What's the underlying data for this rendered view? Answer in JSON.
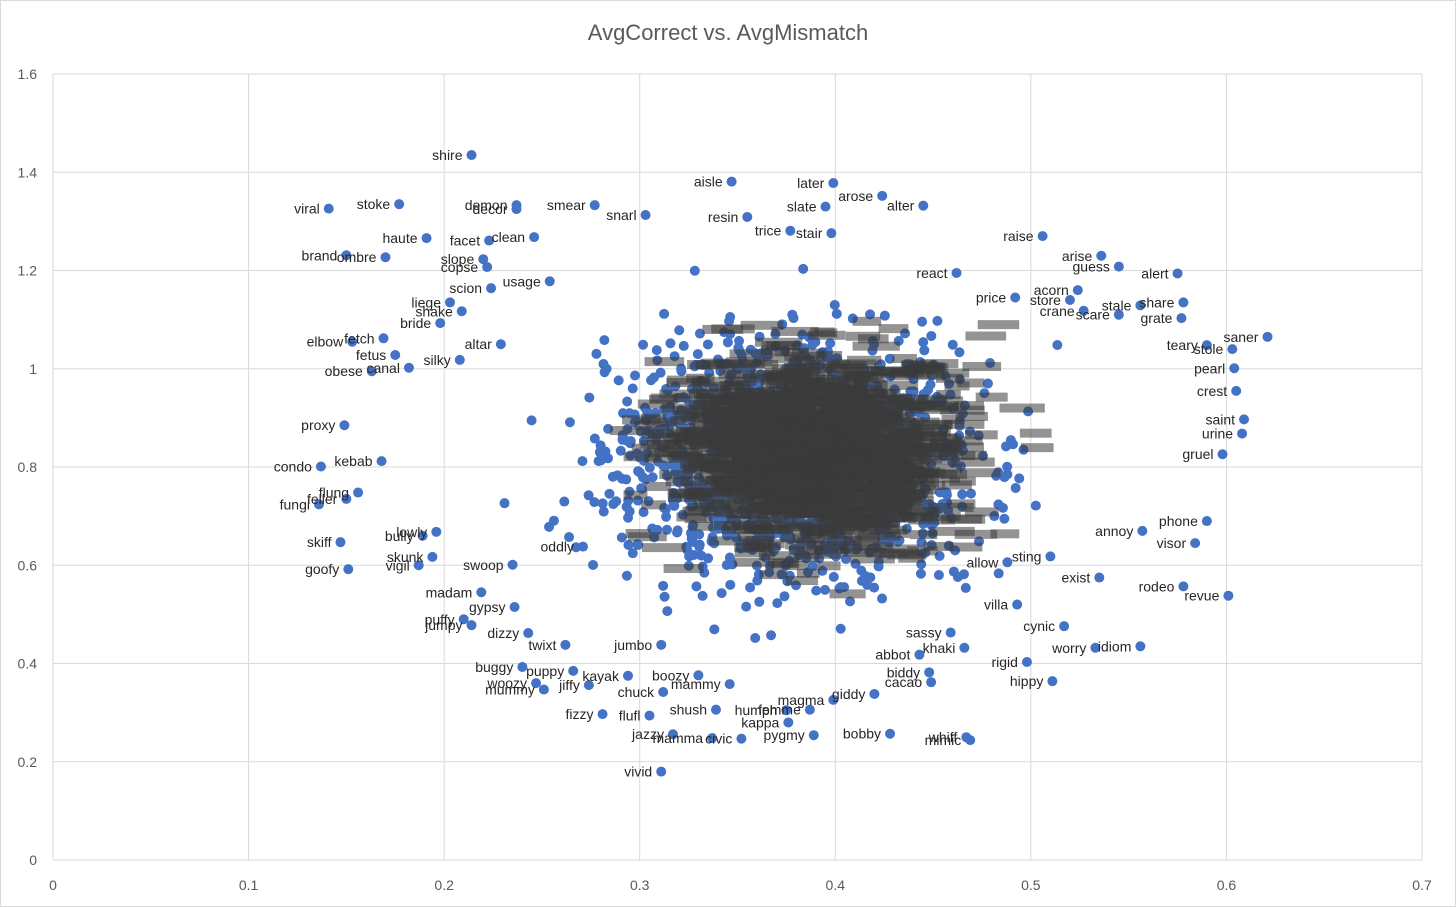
{
  "chart_data": {
    "type": "scatter",
    "title": "AvgCorrect vs. AvgMismatch",
    "xlabel": "",
    "ylabel": "",
    "xlim": [
      0,
      0.7
    ],
    "ylim": [
      0,
      1.6
    ],
    "x_ticks": [
      "0",
      "0.1",
      "0.2",
      "0.3",
      "0.4",
      "0.5",
      "0.6",
      "0.7"
    ],
    "y_ticks": [
      "0",
      "0.2",
      "0.4",
      "0.6",
      "0.8",
      "1",
      "1.2",
      "1.4",
      "1.6"
    ],
    "grid": true,
    "marker_color": "#4472c4",
    "label_color": "#262626",
    "points": [
      {
        "label": "shire",
        "x": 0.214,
        "y": 1.435
      },
      {
        "label": "aisle",
        "x": 0.347,
        "y": 1.381
      },
      {
        "label": "later",
        "x": 0.399,
        "y": 1.378
      },
      {
        "label": "arose",
        "x": 0.424,
        "y": 1.352
      },
      {
        "label": "alter",
        "x": 0.445,
        "y": 1.332
      },
      {
        "label": "slate",
        "x": 0.395,
        "y": 1.33
      },
      {
        "label": "viral",
        "x": 0.141,
        "y": 1.326
      },
      {
        "label": "stoke",
        "x": 0.177,
        "y": 1.335
      },
      {
        "label": "demon",
        "x": 0.237,
        "y": 1.333
      },
      {
        "label": "decor",
        "x": 0.237,
        "y": 1.325
      },
      {
        "label": "smear",
        "x": 0.277,
        "y": 1.333
      },
      {
        "label": "snarl",
        "x": 0.303,
        "y": 1.313
      },
      {
        "label": "resin",
        "x": 0.355,
        "y": 1.309
      },
      {
        "label": "trice",
        "x": 0.377,
        "y": 1.281
      },
      {
        "label": "stair",
        "x": 0.398,
        "y": 1.276
      },
      {
        "label": "haute",
        "x": 0.191,
        "y": 1.266
      },
      {
        "label": "facet",
        "x": 0.223,
        "y": 1.261
      },
      {
        "label": "clean",
        "x": 0.246,
        "y": 1.268
      },
      {
        "label": "raise",
        "x": 0.506,
        "y": 1.27
      },
      {
        "label": "brand",
        "x": 0.15,
        "y": 1.231
      },
      {
        "label": "ombre",
        "x": 0.17,
        "y": 1.227
      },
      {
        "label": "slope",
        "x": 0.22,
        "y": 1.223
      },
      {
        "label": "copse",
        "x": 0.222,
        "y": 1.207
      },
      {
        "label": "arise",
        "x": 0.536,
        "y": 1.23
      },
      {
        "label": "guess",
        "x": 0.545,
        "y": 1.208
      },
      {
        "label": "react",
        "x": 0.462,
        "y": 1.195
      },
      {
        "label": "alert",
        "x": 0.575,
        "y": 1.194
      },
      {
        "label": "usage",
        "x": 0.254,
        "y": 1.178
      },
      {
        "label": "scion",
        "x": 0.224,
        "y": 1.164
      },
      {
        "label": "acorn",
        "x": 0.524,
        "y": 1.16
      },
      {
        "label": "price",
        "x": 0.492,
        "y": 1.145
      },
      {
        "label": "store",
        "x": 0.52,
        "y": 1.14
      },
      {
        "label": "crane",
        "x": 0.527,
        "y": 1.118
      },
      {
        "label": "share",
        "x": 0.578,
        "y": 1.135
      },
      {
        "label": "stale",
        "x": 0.556,
        "y": 1.129
      },
      {
        "label": "liege",
        "x": 0.203,
        "y": 1.135
      },
      {
        "label": "shake",
        "x": 0.209,
        "y": 1.117
      },
      {
        "label": "bride",
        "x": 0.198,
        "y": 1.093
      },
      {
        "label": "scare",
        "x": 0.545,
        "y": 1.11
      },
      {
        "label": "grate",
        "x": 0.577,
        "y": 1.103
      },
      {
        "label": "elbow",
        "x": 0.153,
        "y": 1.055
      },
      {
        "label": "fetch",
        "x": 0.169,
        "y": 1.062
      },
      {
        "label": "fetus",
        "x": 0.175,
        "y": 1.028
      },
      {
        "label": "canal",
        "x": 0.182,
        "y": 1.002
      },
      {
        "label": "obese",
        "x": 0.163,
        "y": 0.995
      },
      {
        "label": "silky",
        "x": 0.208,
        "y": 1.018
      },
      {
        "label": "altar",
        "x": 0.229,
        "y": 1.05
      },
      {
        "label": "saner",
        "x": 0.621,
        "y": 1.065
      },
      {
        "label": "teary",
        "x": 0.59,
        "y": 1.048
      },
      {
        "label": "stole",
        "x": 0.603,
        "y": 1.04
      },
      {
        "label": "pearl",
        "x": 0.604,
        "y": 1.001
      },
      {
        "label": "crest",
        "x": 0.605,
        "y": 0.955
      },
      {
        "label": "saint",
        "x": 0.609,
        "y": 0.897
      },
      {
        "label": "urine",
        "x": 0.608,
        "y": 0.868
      },
      {
        "label": "gruel",
        "x": 0.598,
        "y": 0.826
      },
      {
        "label": "proxy",
        "x": 0.149,
        "y": 0.885
      },
      {
        "label": "condo",
        "x": 0.137,
        "y": 0.801
      },
      {
        "label": "kebab",
        "x": 0.168,
        "y": 0.812
      },
      {
        "label": "flung",
        "x": 0.156,
        "y": 0.748
      },
      {
        "label": "fungi",
        "x": 0.136,
        "y": 0.724
      },
      {
        "label": "feller",
        "x": 0.15,
        "y": 0.735
      },
      {
        "label": "skiff",
        "x": 0.147,
        "y": 0.647
      },
      {
        "label": "goofy",
        "x": 0.151,
        "y": 0.592
      },
      {
        "label": "bully",
        "x": 0.189,
        "y": 0.66
      },
      {
        "label": "lowly",
        "x": 0.196,
        "y": 0.668
      },
      {
        "label": "skunk",
        "x": 0.194,
        "y": 0.617
      },
      {
        "label": "vigil",
        "x": 0.187,
        "y": 0.6
      },
      {
        "label": "swoop",
        "x": 0.235,
        "y": 0.601
      },
      {
        "label": "oddly",
        "x": 0.271,
        "y": 0.638
      },
      {
        "label": "madam",
        "x": 0.219,
        "y": 0.545
      },
      {
        "label": "gypsy",
        "x": 0.236,
        "y": 0.515
      },
      {
        "label": "puffy",
        "x": 0.21,
        "y": 0.49
      },
      {
        "label": "jumpy",
        "x": 0.214,
        "y": 0.478
      },
      {
        "label": "dizzy",
        "x": 0.243,
        "y": 0.462
      },
      {
        "label": "twixt",
        "x": 0.262,
        "y": 0.438
      },
      {
        "label": "jumbo",
        "x": 0.311,
        "y": 0.438
      },
      {
        "label": "buggy",
        "x": 0.24,
        "y": 0.393
      },
      {
        "label": "puppy",
        "x": 0.266,
        "y": 0.385
      },
      {
        "label": "woozy",
        "x": 0.247,
        "y": 0.36
      },
      {
        "label": "mummy",
        "x": 0.251,
        "y": 0.347
      },
      {
        "label": "jiffy",
        "x": 0.274,
        "y": 0.356
      },
      {
        "label": "kayak",
        "x": 0.294,
        "y": 0.375
      },
      {
        "label": "boozy",
        "x": 0.33,
        "y": 0.376
      },
      {
        "label": "chuck",
        "x": 0.312,
        "y": 0.342
      },
      {
        "label": "mammy",
        "x": 0.346,
        "y": 0.358
      },
      {
        "label": "shush",
        "x": 0.339,
        "y": 0.306
      },
      {
        "label": "fizzy",
        "x": 0.281,
        "y": 0.297
      },
      {
        "label": "flufl",
        "x": 0.305,
        "y": 0.294
      },
      {
        "label": "humph",
        "x": 0.375,
        "y": 0.305
      },
      {
        "label": "femme",
        "x": 0.387,
        "y": 0.306
      },
      {
        "label": "kappa",
        "x": 0.376,
        "y": 0.28
      },
      {
        "label": "jazzy",
        "x": 0.317,
        "y": 0.256
      },
      {
        "label": "mamma",
        "x": 0.337,
        "y": 0.248
      },
      {
        "label": "civic",
        "x": 0.352,
        "y": 0.247
      },
      {
        "label": "pygmy",
        "x": 0.389,
        "y": 0.254
      },
      {
        "label": "bobby",
        "x": 0.428,
        "y": 0.257
      },
      {
        "label": "whiff",
        "x": 0.467,
        "y": 0.25
      },
      {
        "label": "mimic",
        "x": 0.469,
        "y": 0.244
      },
      {
        "label": "vivid",
        "x": 0.311,
        "y": 0.18
      },
      {
        "label": "magma",
        "x": 0.399,
        "y": 0.326
      },
      {
        "label": "giddy",
        "x": 0.42,
        "y": 0.338
      },
      {
        "label": "hippy",
        "x": 0.511,
        "y": 0.364
      },
      {
        "label": "rigid",
        "x": 0.498,
        "y": 0.403
      },
      {
        "label": "worry",
        "x": 0.533,
        "y": 0.432
      },
      {
        "label": "idiom",
        "x": 0.556,
        "y": 0.435
      },
      {
        "label": "revue",
        "x": 0.601,
        "y": 0.538
      },
      {
        "label": "rodeo",
        "x": 0.578,
        "y": 0.557
      },
      {
        "label": "visor",
        "x": 0.584,
        "y": 0.645
      },
      {
        "label": "annoy",
        "x": 0.557,
        "y": 0.67
      },
      {
        "label": "phone",
        "x": 0.59,
        "y": 0.69
      },
      {
        "label": "exist",
        "x": 0.535,
        "y": 0.575
      },
      {
        "label": "sting",
        "x": 0.51,
        "y": 0.618
      },
      {
        "label": "allow",
        "x": 0.488,
        "y": 0.606
      },
      {
        "label": "villa",
        "x": 0.493,
        "y": 0.52
      },
      {
        "label": "cynic",
        "x": 0.517,
        "y": 0.476
      },
      {
        "label": "khaki",
        "x": 0.466,
        "y": 0.432
      },
      {
        "label": "sassy",
        "x": 0.459,
        "y": 0.463
      },
      {
        "label": "abbot",
        "x": 0.443,
        "y": 0.418
      },
      {
        "label": "biddy",
        "x": 0.448,
        "y": 0.382
      },
      {
        "label": "cacao",
        "x": 0.449,
        "y": 0.362
      }
    ]
  }
}
